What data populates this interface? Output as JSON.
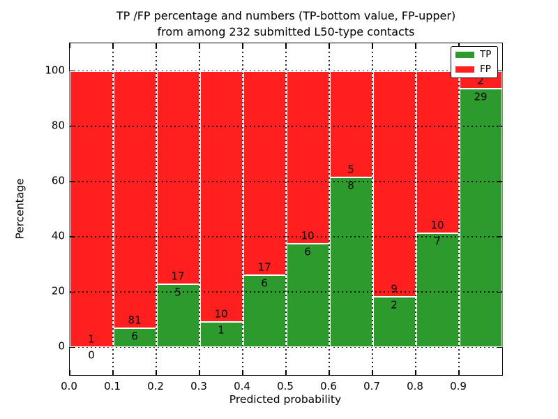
{
  "title": {
    "line1": "TP /FP percentage and numbers (TP-bottom value, FP-upper)",
    "line2": "from among 232 submitted L50-type contacts"
  },
  "axes": {
    "xlabel": "Predicted probability",
    "ylabel": "Percentage"
  },
  "legend": {
    "position": "upper right",
    "entries": [
      {
        "label": "TP",
        "color": "#2d9a2d"
      },
      {
        "label": "FP",
        "color": "#ff1f1f"
      }
    ]
  },
  "chart_data": {
    "type": "bar",
    "variant": "stacked-percentage",
    "title": "TP /FP percentage and numbers (TP-bottom value, FP-upper) from among 232 submitted L50-type contacts",
    "xlabel": "Predicted probability",
    "ylabel": "Percentage",
    "total_contacts": 232,
    "bin_width": 0.1,
    "bins": [
      "0.0-0.1",
      "0.1-0.2",
      "0.2-0.3",
      "0.3-0.4",
      "0.4-0.5",
      "0.5-0.6",
      "0.6-0.7",
      "0.7-0.8",
      "0.8-0.9",
      "0.9-1.0"
    ],
    "series": [
      {
        "name": "TP",
        "color": "#2d9a2d",
        "counts": [
          0,
          6,
          5,
          1,
          6,
          6,
          8,
          2,
          7,
          29
        ]
      },
      {
        "name": "FP",
        "color": "#ff1f1f",
        "counts": [
          1,
          81,
          17,
          10,
          17,
          10,
          5,
          9,
          10,
          2
        ]
      }
    ],
    "bar_rule": "each bin normalized to 100%; green TP share = TP/(TP+FP)*100, red FP share on top",
    "xlim": [
      0.0,
      1.0
    ],
    "ylim": [
      -10,
      110
    ],
    "xtick_values": [
      0.0,
      0.1,
      0.2,
      0.3,
      0.4,
      0.5,
      0.6,
      0.7,
      0.8,
      0.9
    ],
    "xtick_labels": [
      "0.0",
      "0.1",
      "0.2",
      "0.3",
      "0.4",
      "0.5",
      "0.6",
      "0.7",
      "0.8",
      "0.9"
    ],
    "ytick_values": [
      0,
      20,
      40,
      60,
      80,
      100
    ],
    "ytick_labels": [
      "0",
      "20",
      "40",
      "60",
      "80",
      "100"
    ],
    "grid": "dotted, both axes, drawn above bars",
    "legend_position": "upper right"
  }
}
